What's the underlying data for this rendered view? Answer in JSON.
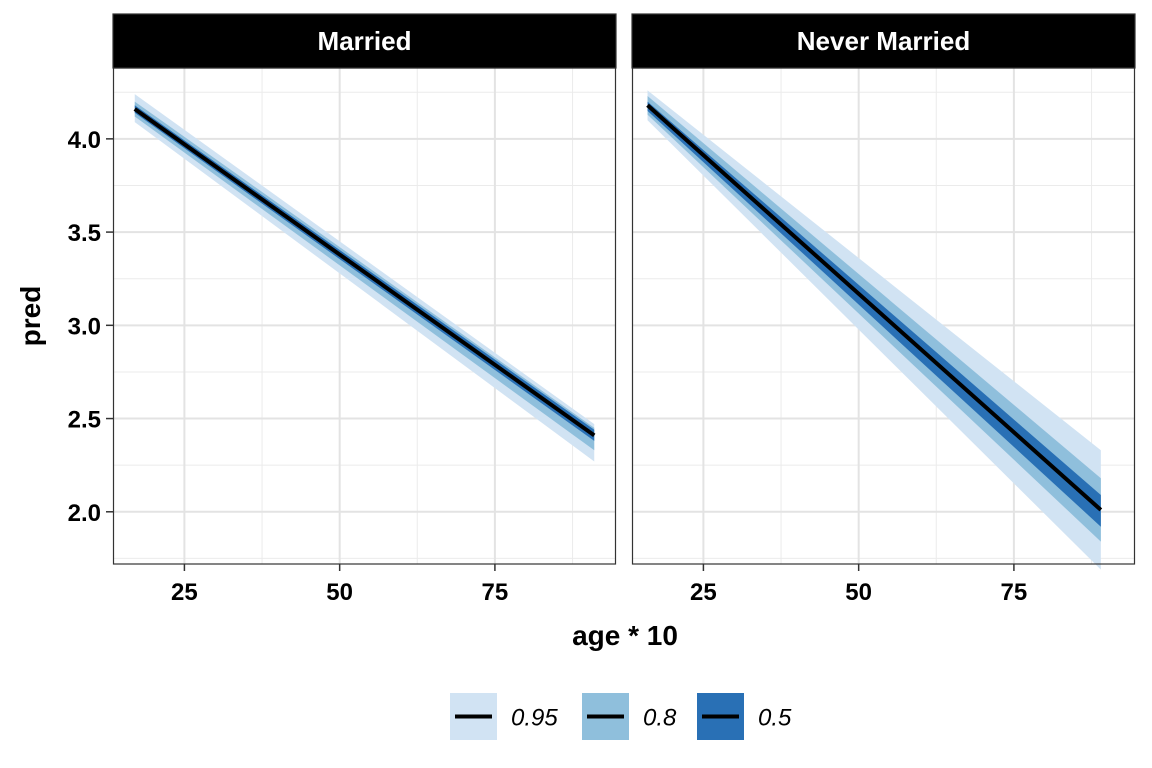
{
  "chart_data": {
    "type": "line",
    "xlabel": "age * 10",
    "ylabel": "pred",
    "xlim": [
      13.5,
      94.5
    ],
    "ylim": [
      1.72,
      4.38
    ],
    "x_ticks": [
      25,
      50,
      75
    ],
    "x_tick_labels": [
      "25",
      "50",
      "75"
    ],
    "y_ticks": [
      2.0,
      2.5,
      3.0,
      3.5,
      4.0
    ],
    "y_tick_labels": [
      "2.0",
      "2.5",
      "3.0",
      "3.5",
      "4.0"
    ],
    "grid": true,
    "legend": {
      "placement": "bottom",
      "entries": [
        {
          "label": "0.95",
          "color": "#d1e3f3"
        },
        {
          "label": "0.8",
          "color": "#8fbfdc"
        },
        {
          "label": "0.5",
          "color": "#2970b5"
        }
      ]
    },
    "line_color": "#000000",
    "panels": [
      {
        "name": "Married",
        "x": [
          17,
          91
        ],
        "pred": [
          4.16,
          2.41
        ],
        "bands": [
          {
            "level": "0.95",
            "color": "#d1e3f3",
            "lower": [
              4.09,
              2.27
            ],
            "upper": [
              4.24,
              2.47
            ]
          },
          {
            "level": "0.8",
            "color": "#8fbfdc",
            "lower": [
              4.12,
              2.33
            ],
            "upper": [
              4.2,
              2.45
            ]
          },
          {
            "level": "0.5",
            "color": "#2970b5",
            "lower": [
              4.14,
              2.38
            ],
            "upper": [
              4.18,
              2.44
            ]
          }
        ]
      },
      {
        "name": "Never Married",
        "x": [
          16,
          89
        ],
        "pred": [
          4.18,
          2.01
        ],
        "bands": [
          {
            "level": "0.95",
            "color": "#d1e3f3",
            "lower": [
              4.1,
              1.69
            ],
            "upper": [
              4.26,
              2.33
            ]
          },
          {
            "level": "0.8",
            "color": "#8fbfdc",
            "lower": [
              4.13,
              1.84
            ],
            "upper": [
              4.23,
              2.18
            ]
          },
          {
            "level": "0.5",
            "color": "#2970b5",
            "lower": [
              4.15,
              1.92
            ],
            "upper": [
              4.2,
              2.09
            ]
          }
        ]
      }
    ]
  }
}
